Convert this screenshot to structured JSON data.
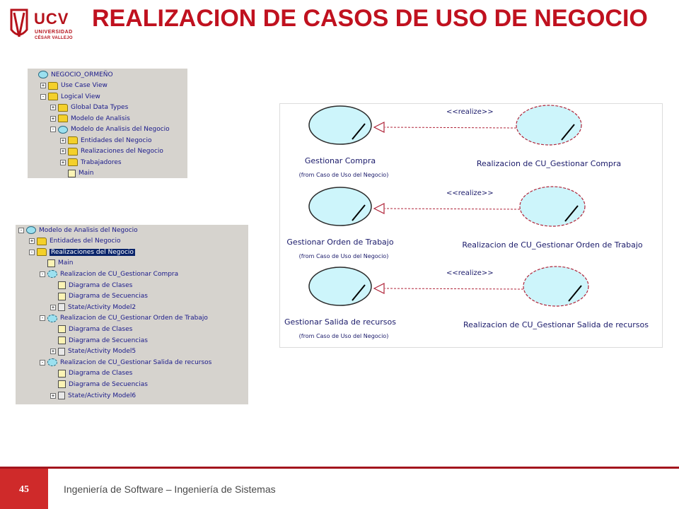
{
  "header": {
    "logo_text": "UCV",
    "logo_sub1": "UNIVERSIDAD",
    "logo_sub2": "CÉSAR VALLEJO",
    "title": "REALIZACION DE CASOS DE USO DE NEGOCIO"
  },
  "tree1": [
    {
      "label": "NEGOCIO_ORMEÑO",
      "icon": "model",
      "exp": ""
    },
    {
      "label": "Use Case View",
      "icon": "folder",
      "exp": "+"
    },
    {
      "label": "Logical View",
      "icon": "folder",
      "exp": "-"
    },
    {
      "label": "Global Data Types",
      "icon": "folder",
      "exp": "+"
    },
    {
      "label": "Modelo de Analisis",
      "icon": "folder",
      "exp": "+"
    },
    {
      "label": "Modelo de Analisis del Negocio",
      "icon": "package",
      "exp": "-"
    },
    {
      "label": "Entidades del Negocio",
      "icon": "folder",
      "exp": "+"
    },
    {
      "label": "Realizaciones del Negocio",
      "icon": "folder",
      "exp": "+"
    },
    {
      "label": "Trabajadores",
      "icon": "folder",
      "exp": "+"
    },
    {
      "label": "Main",
      "icon": "diagram",
      "exp": ""
    }
  ],
  "tree2": [
    {
      "label": "Modelo de Analisis del Negocio",
      "icon": "package",
      "exp": "-"
    },
    {
      "label": "Entidades del Negocio",
      "icon": "folder",
      "exp": "+"
    },
    {
      "label": "Realizaciones del Negocio",
      "icon": "folder",
      "exp": "-",
      "selected": true
    },
    {
      "label": "Main",
      "icon": "diagram",
      "exp": ""
    },
    {
      "label": "Realizacion de CU_Gestionar Compra",
      "icon": "realization",
      "exp": "-"
    },
    {
      "label": "Diagrama de Clases",
      "icon": "diagram",
      "exp": ""
    },
    {
      "label": "Diagrama de Secuencias",
      "icon": "diagram",
      "exp": ""
    },
    {
      "label": "State/Activity Model2",
      "icon": "state",
      "exp": "+"
    },
    {
      "label": "Realizacion de CU_Gestionar Orden de Trabajo",
      "icon": "realization",
      "exp": "-"
    },
    {
      "label": "Diagrama de Clases",
      "icon": "diagram",
      "exp": ""
    },
    {
      "label": "Diagrama de Secuencias",
      "icon": "diagram",
      "exp": ""
    },
    {
      "label": "State/Activity Model5",
      "icon": "state",
      "exp": "+"
    },
    {
      "label": "Realizacion de CU_Gestionar Salida de recursos",
      "icon": "realization",
      "exp": "-"
    },
    {
      "label": "Diagrama de Clases",
      "icon": "diagram",
      "exp": ""
    },
    {
      "label": "Diagrama de Secuencias",
      "icon": "diagram",
      "exp": ""
    },
    {
      "label": "State/Activity Model6",
      "icon": "state",
      "exp": "+"
    }
  ],
  "diagram": {
    "stereotype": "<<realize>>",
    "rows": [
      {
        "usecase": "Gestionar Compra",
        "from": "(from Caso de Uso del Negocio)",
        "realization": "Realizacion de CU_Gestionar Compra"
      },
      {
        "usecase": "Gestionar Orden de Trabajo",
        "from": "(from Caso de Uso del Negocio)",
        "realization": "Realizacion de CU_Gestionar Orden de Trabajo"
      },
      {
        "usecase": "Gestionar Salida de recursos",
        "from": "(from Caso de Uso del Negocio)",
        "realization": "Realizacion de CU_Gestionar Salida de recursos"
      }
    ]
  },
  "footer": {
    "page_number": "45",
    "text": "Ingeniería de Software – Ingeniería de Sistemas"
  },
  "colors": {
    "brand_red": "#c0111f",
    "footer_red": "#cf2a2a",
    "usecase_fill": "#cdf5fb",
    "realize_line": "#b0253a"
  }
}
